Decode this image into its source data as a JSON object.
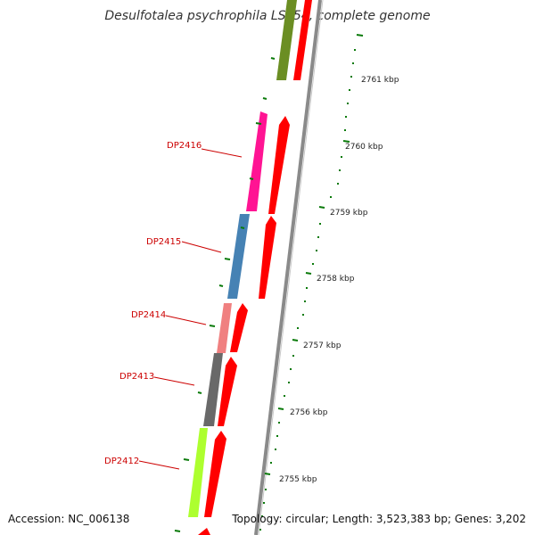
{
  "title": "Desulfotalea psychrophila LSv54, complete genome",
  "footer": {
    "accession": "Accession: NC_006138",
    "summary": "Topology: circular; Length: 3,523,383 bp; Genes: 3,202"
  },
  "ruler_labels": [
    "2761 kbp",
    "2760 kbp",
    "2759 kbp",
    "2758 kbp",
    "2757 kbp",
    "2756 kbp",
    "2755 kbp"
  ],
  "gene_labels": [
    "DP2416",
    "DP2415",
    "DP2414",
    "DP2413",
    "DP2412"
  ],
  "colors": {
    "backbone": "#8a8a8a",
    "strand_arrow": "#ff0000",
    "tick": "#0a7a0a",
    "gene_label": "#cc0000",
    "gene_fills": [
      "#6b8e23",
      "#ff1493",
      "#4682b4",
      "#f08080",
      "#696969",
      "#adff2f"
    ]
  }
}
